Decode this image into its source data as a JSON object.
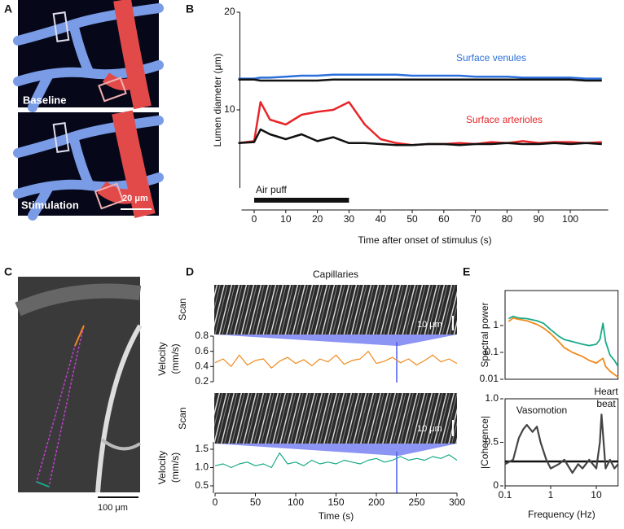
{
  "panel_labels": [
    "A",
    "B",
    "C",
    "D",
    "E"
  ],
  "images": {
    "baseline": "Baseline",
    "stimulation": "Stimulation",
    "scale_a": "20 μm",
    "scale_c": "100 μm",
    "scan_scale": "10 μm",
    "scan_label": "Scan"
  },
  "chart_data": [
    {
      "type": "line",
      "xlabel": "Time after onset of stimulus (s)",
      "ylabel": "Lumen diameter (μm)",
      "x": [
        -5,
        0,
        2,
        5,
        10,
        15,
        20,
        25,
        30,
        35,
        40,
        45,
        50,
        55,
        60,
        65,
        70,
        75,
        80,
        85,
        90,
        95,
        100,
        105,
        110
      ],
      "xlim": [
        -4,
        112
      ],
      "ylim": [
        2,
        20
      ],
      "xticks": [
        0,
        10,
        20,
        30,
        40,
        50,
        60,
        70,
        80,
        90,
        100
      ],
      "yticks": [
        10,
        20
      ],
      "stimulus": {
        "label": "Air puff",
        "start": 0,
        "end": 30
      },
      "series": [
        {
          "name": "Surface venules",
          "color": "#2a6fdb",
          "values": [
            13.2,
            13.2,
            13.3,
            13.3,
            13.4,
            13.5,
            13.5,
            13.6,
            13.6,
            13.6,
            13.6,
            13.6,
            13.5,
            13.5,
            13.5,
            13.5,
            13.4,
            13.4,
            13.4,
            13.3,
            13.3,
            13.3,
            13.3,
            13.2,
            13.2
          ]
        },
        {
          "color": "#111111",
          "values": [
            13.1,
            13.1,
            13.0,
            13.0,
            13.0,
            13.0,
            13.0,
            13.1,
            13.1,
            13.1,
            13.1,
            13.1,
            13.1,
            13.1,
            13.1,
            13.1,
            13.1,
            13.1,
            13.1,
            13.1,
            13.1,
            13.1,
            13.1,
            13.0,
            13.0
          ]
        },
        {
          "name": "Surface arterioles",
          "color": "#e8262a",
          "values": [
            6.6,
            6.8,
            10.8,
            9,
            8.5,
            9.5,
            9.8,
            10,
            10.8,
            8.5,
            7,
            6.6,
            6.4,
            6.5,
            6.5,
            6.6,
            6.5,
            6.7,
            6.6,
            6.8,
            6.6,
            6.7,
            6.7,
            6.6,
            6.7
          ]
        },
        {
          "color": "#111111",
          "values": [
            6.6,
            6.7,
            8,
            7.5,
            7,
            7.5,
            6.8,
            7.2,
            6.6,
            6.6,
            6.5,
            6.4,
            6.4,
            6.5,
            6.5,
            6.4,
            6.5,
            6.5,
            6.6,
            6.5,
            6.5,
            6.6,
            6.5,
            6.6,
            6.5
          ]
        }
      ]
    },
    {
      "type": "line",
      "title": "Capillaries",
      "ylabel": "Velocity",
      "yunit": "(mm/s)",
      "x": [
        0,
        10,
        20,
        30,
        40,
        50,
        60,
        70,
        80,
        90,
        100,
        110,
        120,
        130,
        140,
        150,
        160,
        170,
        180,
        190,
        200,
        210,
        220,
        230,
        240,
        250,
        260,
        270,
        280,
        290,
        300
      ],
      "xlim": [
        0,
        300
      ],
      "ylim": [
        0.2,
        0.8
      ],
      "yticks": [
        0.2,
        0.4,
        0.6,
        0.8
      ],
      "series": [
        {
          "color": "#f08a1c",
          "values": [
            0.45,
            0.5,
            0.4,
            0.55,
            0.42,
            0.48,
            0.5,
            0.38,
            0.47,
            0.52,
            0.44,
            0.49,
            0.41,
            0.5,
            0.46,
            0.55,
            0.43,
            0.48,
            0.5,
            0.6,
            0.44,
            0.47,
            0.52,
            0.45,
            0.5,
            0.42,
            0.48,
            0.55,
            0.46,
            0.5,
            0.44
          ]
        }
      ]
    },
    {
      "type": "line",
      "xlabel": "Time (s)",
      "ylabel": "Velocity",
      "yunit": "(mm/s)",
      "x": [
        0,
        10,
        20,
        30,
        40,
        50,
        60,
        70,
        80,
        90,
        100,
        110,
        120,
        130,
        140,
        150,
        160,
        170,
        180,
        190,
        200,
        210,
        220,
        230,
        240,
        250,
        260,
        270,
        280,
        290,
        300
      ],
      "xlim": [
        0,
        300
      ],
      "ylim": [
        0.3,
        1.7
      ],
      "xticks": [
        0,
        50,
        100,
        150,
        200,
        250,
        300
      ],
      "yticks": [
        0.5,
        {
          "value": 1,
          "label": "1.0"
        },
        1.5
      ],
      "series": [
        {
          "color": "#1aaa88",
          "values": [
            1.05,
            1.1,
            1.0,
            1.1,
            1.15,
            1.05,
            1.1,
            1.0,
            1.4,
            1.1,
            1.15,
            1.05,
            1.2,
            1.1,
            1.15,
            1.1,
            1.2,
            1.15,
            1.1,
            1.2,
            1.25,
            1.15,
            1.2,
            1.3,
            1.2,
            1.25,
            1.2,
            1.3,
            1.25,
            1.35,
            1.2
          ]
        }
      ]
    },
    {
      "type": "line",
      "ylabel": "Spectral power",
      "xlog": true,
      "ylog": true,
      "x": [
        0.12,
        0.15,
        0.2,
        0.3,
        0.5,
        0.7,
        1,
        1.5,
        2,
        3,
        5,
        7,
        10,
        12,
        14,
        16,
        20,
        25,
        30
      ],
      "xlim": [
        0.1,
        30
      ],
      "ylim": [
        0.01,
        20
      ],
      "yticks": [
        0.01,
        0.1,
        1
      ],
      "series": [
        {
          "color": "#1aaa88",
          "values": [
            1.8,
            2.2,
            1.9,
            1.8,
            1.5,
            1.2,
            0.7,
            0.4,
            0.3,
            0.25,
            0.2,
            0.18,
            0.2,
            0.3,
            1.2,
            0.25,
            0.08,
            0.05,
            0.03
          ]
        },
        {
          "color": "#f08a1c",
          "values": [
            1.4,
            1.9,
            1.7,
            1.5,
            1.1,
            0.8,
            0.5,
            0.25,
            0.15,
            0.1,
            0.07,
            0.05,
            0.04,
            0.05,
            0.06,
            0.03,
            0.02,
            0.015,
            0.012
          ]
        }
      ]
    },
    {
      "type": "line",
      "xlabel": "Frequency (Hz)",
      "ylabel": "|Coherence|",
      "xlog": true,
      "x": [
        0.1,
        0.15,
        0.2,
        0.25,
        0.3,
        0.4,
        0.5,
        0.6,
        0.8,
        1,
        1.5,
        2,
        3,
        4,
        5,
        7,
        10,
        12,
        13,
        14,
        16,
        20,
        25,
        30
      ],
      "xlim": [
        0.1,
        30
      ],
      "ylim": [
        0,
        1
      ],
      "xticks": [
        0.1,
        1,
        10
      ],
      "yticks": [
        0,
        0.5,
        {
          "value": 1,
          "label": "1.0"
        }
      ],
      "threshold": 0.28,
      "annotations": [
        "Vasomotion",
        "Heart",
        "beat"
      ],
      "series": [
        {
          "color": "#444444",
          "values": [
            0.25,
            0.3,
            0.55,
            0.65,
            0.7,
            0.62,
            0.68,
            0.5,
            0.3,
            0.2,
            0.25,
            0.3,
            0.15,
            0.25,
            0.2,
            0.3,
            0.2,
            0.5,
            0.82,
            0.6,
            0.2,
            0.3,
            0.2,
            0.25
          ]
        }
      ]
    }
  ]
}
